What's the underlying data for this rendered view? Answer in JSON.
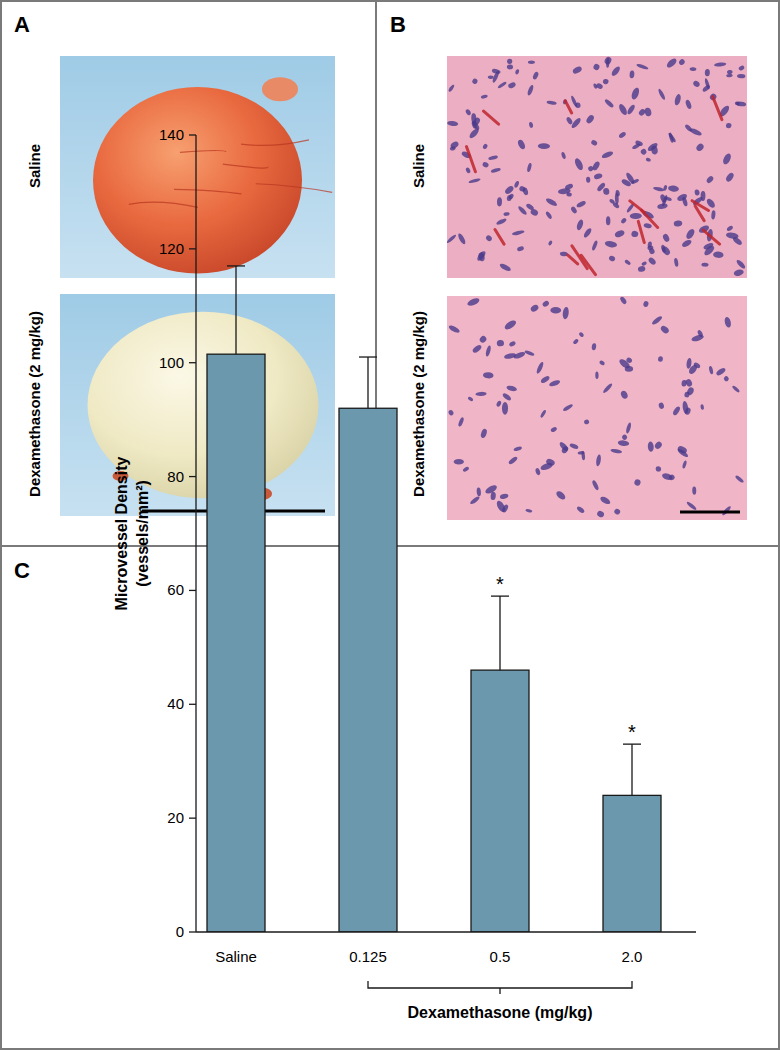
{
  "panels": [
    {
      "label": "A",
      "rows": [
        "Saline",
        "Dexamethasone (2 mg/kg)"
      ]
    },
    {
      "label": "B",
      "rows": [
        "Saline",
        "Dexamethasone (2 mg/kg)"
      ]
    },
    {
      "label": "C"
    }
  ],
  "chart_data": {
    "type": "bar",
    "categories": [
      "Saline",
      "0.125",
      "0.5",
      "2.0"
    ],
    "values": [
      101.5,
      92,
      46,
      24
    ],
    "errors": [
      15.5,
      9,
      13,
      9
    ],
    "annotations": [
      null,
      null,
      "*",
      "*"
    ],
    "color": "#6b98ad",
    "ylim": [
      0,
      140
    ],
    "yticks": [
      0,
      20,
      40,
      60,
      80,
      100,
      120,
      140
    ],
    "y_label": "Microvessel Density (vessels/mm²)",
    "x_label": "Dexamethasone (mg/kg)",
    "grid": false
  }
}
